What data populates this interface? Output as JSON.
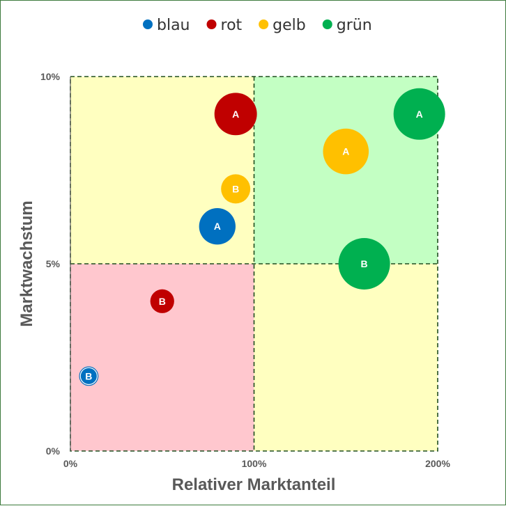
{
  "chart_data": {
    "type": "bubble",
    "xlabel": "Relativer Marktanteil",
    "ylabel": "Marktwachstum",
    "xlim": [
      0,
      200
    ],
    "ylim": [
      0,
      10
    ],
    "x_ticks": [
      "0%",
      "100%",
      "200%"
    ],
    "y_ticks": [
      "0%",
      "5%",
      "10%"
    ],
    "legend_position": "top",
    "grid": "dashed quadrant lines at 100% and 5%",
    "quadrants": [
      {
        "name": "low-share-low-growth",
        "color": "#ffc7ce"
      },
      {
        "name": "low-share-high-growth",
        "color": "#ffffc0"
      },
      {
        "name": "high-share-high-growth",
        "color": "#c3ffc3"
      },
      {
        "name": "high-share-low-growth",
        "color": "#ffffc0"
      }
    ],
    "series": [
      {
        "name": "blau",
        "color": "#0070c0",
        "points": [
          {
            "label": "A",
            "x": 80,
            "y": 6,
            "size": 7
          },
          {
            "label": "B",
            "x": 10,
            "y": 2,
            "size": 1.5,
            "outline": true
          }
        ]
      },
      {
        "name": "rot",
        "color": "#c00000",
        "points": [
          {
            "label": "A",
            "x": 90,
            "y": 9,
            "size": 9.5
          },
          {
            "label": "B",
            "x": 50,
            "y": 4,
            "size": 3
          }
        ]
      },
      {
        "name": "gelb",
        "color": "#ffc000",
        "points": [
          {
            "label": "A",
            "x": 150,
            "y": 8,
            "size": 11
          },
          {
            "label": "B",
            "x": 90,
            "y": 7,
            "size": 4.5
          }
        ]
      },
      {
        "name": "grün",
        "color": "#00b050",
        "points": [
          {
            "label": "A",
            "x": 190,
            "y": 9,
            "size": 14
          },
          {
            "label": "B",
            "x": 160,
            "y": 5,
            "size": 14
          }
        ]
      }
    ]
  }
}
